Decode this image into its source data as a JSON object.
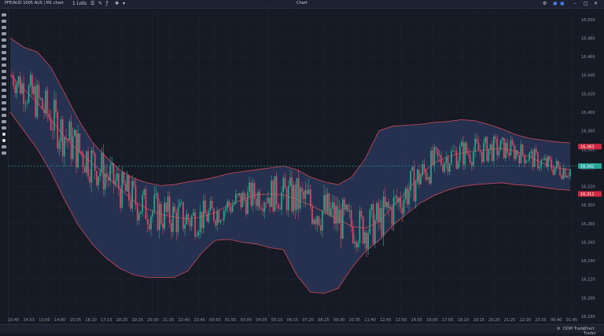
{
  "window": {
    "title": "Chart",
    "symbol_label": "PFE/AUD 1005 AUS | M1 chart",
    "lots_label": "1 Lots"
  },
  "colors": {
    "background": "#161a25",
    "band_fill": "#2b3a5e",
    "band_edge": "#d04a5a",
    "bull": "#26b08a",
    "bear": "#e04a65",
    "current_price": "#26a69a",
    "upper_marker": "#d2283f",
    "lower_marker": "#d2283f"
  },
  "price_axis": {
    "labels": [
      "16,500",
      "16,480",
      "16,460",
      "16,440",
      "16,420",
      "16,400",
      "16,380",
      "16,360",
      "16,340",
      "16,320",
      "16,300",
      "16,280",
      "16,260",
      "16,240",
      "16,220",
      "16,200",
      "16,180"
    ],
    "markers": {
      "upper": "16,363",
      "current": "16,342",
      "lower": "16,312"
    }
  },
  "time_axis": {
    "labels": [
      "10:40",
      "14:03",
      "13:00",
      "14:00",
      "15:05",
      "16:10",
      "17:15",
      "18:20",
      "19:25",
      "20:30",
      "21:35",
      "22:40",
      "23:45",
      "00:50",
      "01:55",
      "03:00",
      "04:05",
      "05:10",
      "06:15",
      "07:20",
      "08:25",
      "09:30",
      "10:35",
      "11:40",
      "12:45",
      "13:50",
      "14:55",
      "16:00",
      "17:05",
      "18:10",
      "19:15",
      "20:20",
      "21:25",
      "22:30",
      "23:35",
      "00:40",
      "01:45"
    ]
  },
  "bottom_bar": {
    "dom_trader": "DOM Trader",
    "chart_trader": "Chart Trader"
  },
  "chart_data": {
    "type": "candlestick",
    "indicator": "bollinger_bands",
    "note_ylim": [
      16180,
      16510
    ],
    "mid_price_path": [
      16440,
      16425,
      16410,
      16392,
      16373,
      16358,
      16345,
      16332,
      16318,
      16305,
      16296,
      16290,
      16287,
      16285,
      16287,
      16292,
      16300,
      16306,
      16311,
      16312,
      16311,
      16306,
      16300,
      16292,
      16285,
      16277,
      16275,
      16282,
      16298,
      16314,
      16332,
      16345,
      16352,
      16356,
      16358,
      16360,
      16361,
      16358,
      16352,
      16345,
      16340,
      16338
    ],
    "upper_band": [
      16480,
      16470,
      16465,
      16448,
      16420,
      16392,
      16368,
      16352,
      16338,
      16329,
      16324,
      16321,
      16322,
      16325,
      16327,
      16330,
      16334,
      16336,
      16338,
      16340,
      16342,
      16338,
      16330,
      16325,
      16322,
      16330,
      16350,
      16380,
      16385,
      16386,
      16387,
      16389,
      16390,
      16392,
      16391,
      16387,
      16382,
      16376,
      16372,
      16370,
      16368,
      16367
    ],
    "lower_band": [
      16400,
      16380,
      16360,
      16335,
      16305,
      16278,
      16258,
      16243,
      16232,
      16225,
      16222,
      16222,
      16222,
      16229,
      16248,
      16262,
      16263,
      16260,
      16258,
      16254,
      16252,
      16224,
      16206,
      16205,
      16210,
      16232,
      16250,
      16262,
      16278,
      16290,
      16302,
      16310,
      16316,
      16320,
      16322,
      16323,
      16324,
      16322,
      16321,
      16319,
      16317,
      16316
    ]
  }
}
